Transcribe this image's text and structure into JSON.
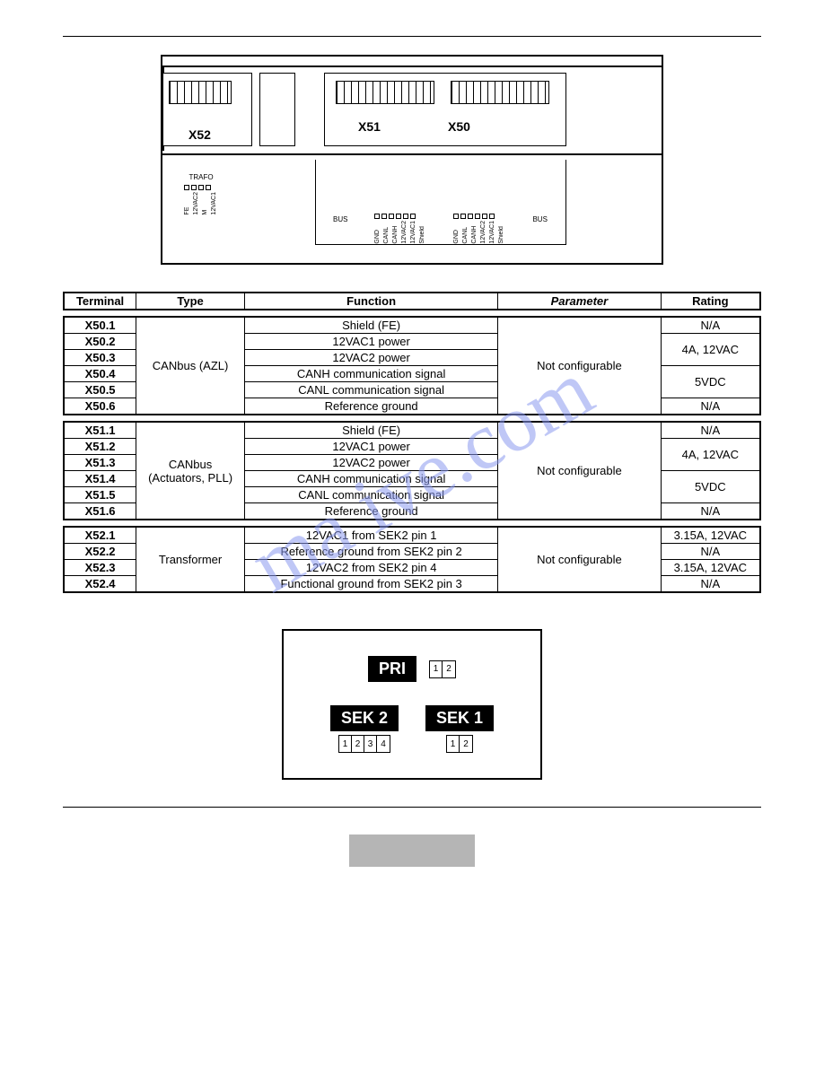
{
  "diagram_top": {
    "blocks": {
      "x52": "X52",
      "x51": "X51",
      "x50": "X50"
    },
    "trafo": {
      "title": "TRAFO",
      "labels": [
        "FE",
        "12VAC2",
        "M",
        "12VAC1"
      ]
    },
    "bus": {
      "left_label": "BUS",
      "right_label": "BUS",
      "group_a": [
        "GND",
        "CANL",
        "CANH",
        "12VAC2",
        "12VAC1",
        "Shield"
      ],
      "group_b": [
        "GND",
        "CANL",
        "CANH",
        "12VAC2",
        "12VAC1",
        "Shield"
      ]
    }
  },
  "table_header": {
    "columns": [
      "Terminal",
      "Type",
      "Function",
      "Parameter",
      "Rating"
    ]
  },
  "groups": [
    {
      "type": "CANbus (AZL)",
      "param": "Not configurable",
      "rows": [
        {
          "term": "X50.1",
          "func": "Shield (FE)",
          "rating": "N/A",
          "rspan_rating": 1
        },
        {
          "term": "X50.2",
          "func": "12VAC1 power",
          "rating": "4A, 12VAC",
          "rspan_rating": 2
        },
        {
          "term": "X50.3",
          "func": "12VAC2 power"
        },
        {
          "term": "X50.4",
          "func": "CANH communication signal",
          "rating": "5VDC",
          "rspan_rating": 2
        },
        {
          "term": "X50.5",
          "func": "CANL communication signal"
        },
        {
          "term": "X50.6",
          "func": "Reference ground",
          "rating": "N/A",
          "rspan_rating": 1
        }
      ]
    },
    {
      "type": "CANbus (Actuators, PLL)",
      "param": "Not configurable",
      "rows": [
        {
          "term": "X51.1",
          "func": "Shield (FE)",
          "rating": "N/A",
          "rspan_rating": 1
        },
        {
          "term": "X51.2",
          "func": "12VAC1 power",
          "rating": "4A, 12VAC",
          "rspan_rating": 2
        },
        {
          "term": "X51.3",
          "func": "12VAC2 power"
        },
        {
          "term": "X51.4",
          "func": "CANH communication signal",
          "rating": "5VDC",
          "rspan_rating": 2
        },
        {
          "term": "X51.5",
          "func": "CANL communication signal"
        },
        {
          "term": "X51.6",
          "func": "Reference ground",
          "rating": "N/A",
          "rspan_rating": 1
        }
      ]
    },
    {
      "type": "Transformer",
      "param": "Not configurable",
      "rows": [
        {
          "term": "X52.1",
          "func": "12VAC1 from SEK2 pin 1",
          "rating": "3.15A, 12VAC",
          "rspan_rating": 1
        },
        {
          "term": "X52.2",
          "func": "Reference ground from SEK2 pin 2",
          "rating": "N/A",
          "rspan_rating": 1
        },
        {
          "term": "X52.3",
          "func": "12VAC2 from SEK2 pin 4",
          "rating": "3.15A, 12VAC",
          "rspan_rating": 1
        },
        {
          "term": "X52.4",
          "func": "Functional ground from SEK2 pin 3",
          "rating": "N/A",
          "rspan_rating": 1
        }
      ]
    }
  ],
  "diagram_bottom": {
    "pri": {
      "label": "PRI",
      "pins": [
        "1",
        "2"
      ]
    },
    "sek2": {
      "label": "SEK 2",
      "pins": [
        "1",
        "2",
        "3",
        "4"
      ]
    },
    "sek1": {
      "label": "SEK 1",
      "pins": [
        "1",
        "2"
      ]
    }
  },
  "watermark": "ma         ive.com",
  "colors": {
    "watermark": "#8b9af0",
    "footer_box": "#b5b5b5",
    "border": "#000000",
    "background": "#ffffff"
  }
}
